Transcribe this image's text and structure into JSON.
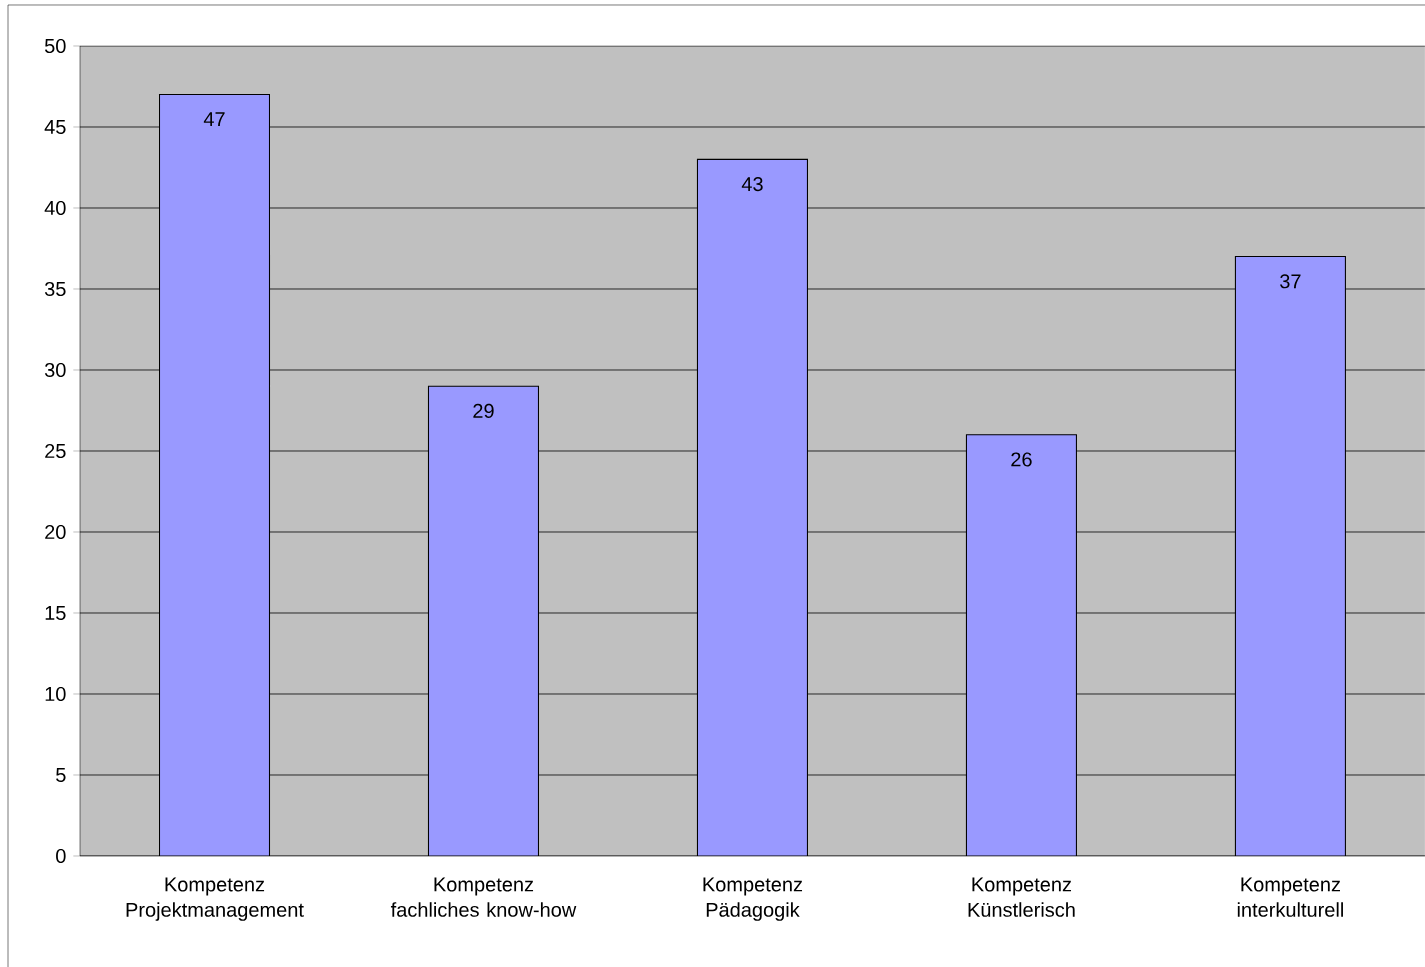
{
  "chart_data": {
    "type": "bar",
    "categories": [
      "Kompetenz Projektmanagement",
      "Kompetenz fachliches know-how",
      "Kompetenz Pädagogik",
      "Kompetenz Künstlerisch",
      "Kompetenz interkulturell"
    ],
    "values": [
      47,
      29,
      43,
      26,
      37
    ],
    "color": "#9999ff",
    "ylim": [
      0,
      50
    ],
    "yticks": [
      0,
      5,
      10,
      15,
      20,
      25,
      30,
      35,
      40,
      45,
      50
    ],
    "grid": "y",
    "data_labels": true
  }
}
